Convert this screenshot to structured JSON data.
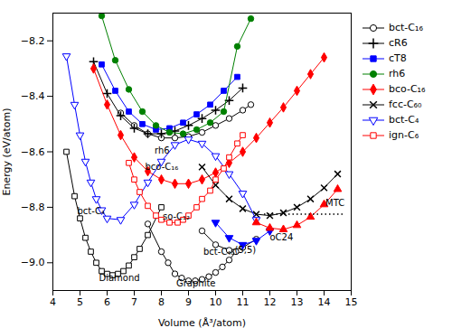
{
  "chart_data": {
    "type": "line",
    "xlabel": "Volume (Å³/atom)",
    "ylabel": "Energy (eV/atom)",
    "xlim": [
      4,
      15
    ],
    "ylim": [
      -9.1,
      -8.1
    ],
    "xticks": [
      4,
      5,
      6,
      7,
      8,
      9,
      10,
      11,
      12,
      13,
      14,
      15
    ],
    "yticks": [
      {
        "value": -9.0,
        "label": "−9.0"
      },
      {
        "value": -8.8,
        "label": "−8.8"
      },
      {
        "value": -8.6,
        "label": "−8.6"
      },
      {
        "value": -8.4,
        "label": "−8.4"
      },
      {
        "value": -8.2,
        "label": "−8.2"
      }
    ],
    "grid": false,
    "legend": "right",
    "series": [
      {
        "color": "black",
        "marker": "open_square",
        "x": [
          4.5,
          4.8,
          5.0,
          5.2,
          5.4,
          5.6,
          5.8,
          6.0,
          6.2,
          6.4,
          6.6,
          6.8,
          7.0,
          7.2,
          7.5,
          8.0
        ],
        "values": [
          -8.6,
          -8.76,
          -8.84,
          -8.91,
          -8.96,
          -9.0,
          -9.03,
          -9.04,
          -9.045,
          -9.04,
          -9.03,
          -9.01,
          -8.98,
          -8.95,
          -8.9,
          -8.8
        ]
      },
      {
        "color": "black",
        "marker": "open_circle",
        "x": [
          7.5,
          8.0,
          8.25,
          8.5,
          8.75,
          9.0,
          9.25,
          9.5,
          9.75,
          10.0,
          10.25,
          10.5,
          10.75
        ],
        "values": [
          -8.86,
          -8.96,
          -9.0,
          -9.04,
          -9.055,
          -9.065,
          -9.065,
          -9.06,
          -9.05,
          -9.035,
          -9.015,
          -8.99,
          -8.96
        ]
      },
      {
        "name": "bct-C₁₆",
        "color": "black",
        "marker": "open_circle",
        "x": [
          6.5,
          7.0,
          7.5,
          8.0,
          8.5,
          9.0,
          9.5,
          10.0,
          10.5,
          11.0,
          11.3
        ],
        "values": [
          -8.46,
          -8.505,
          -8.535,
          -8.55,
          -8.55,
          -8.545,
          -8.53,
          -8.505,
          -8.48,
          -8.45,
          -8.43
        ]
      },
      {
        "name": "cR6",
        "color": "black",
        "marker": "plus",
        "x": [
          5.5,
          6.0,
          6.5,
          7.0,
          7.5,
          8.0,
          8.5,
          9.0,
          9.5,
          10.0,
          10.5,
          11.0
        ],
        "values": [
          -8.275,
          -8.39,
          -8.47,
          -8.515,
          -8.535,
          -8.535,
          -8.525,
          -8.505,
          -8.48,
          -8.45,
          -8.415,
          -8.37
        ]
      },
      {
        "name": "cT8",
        "color": "blue",
        "marker": "square",
        "x": [
          5.8,
          6.3,
          6.8,
          7.3,
          7.8,
          8.3,
          8.8,
          9.3,
          9.8,
          10.3,
          10.8
        ],
        "values": [
          -8.285,
          -8.38,
          -8.455,
          -8.5,
          -8.52,
          -8.515,
          -8.495,
          -8.465,
          -8.43,
          -8.38,
          -8.33
        ]
      },
      {
        "name": "rh6",
        "color": "green",
        "marker": "circle",
        "x": [
          5.8,
          6.3,
          6.8,
          7.3,
          7.8,
          8.3,
          8.8,
          9.3,
          9.8,
          10.3,
          10.8,
          11.3
        ],
        "values": [
          -8.11,
          -8.27,
          -8.375,
          -8.455,
          -8.505,
          -8.53,
          -8.535,
          -8.52,
          -8.495,
          -8.455,
          -8.22,
          -8.12
        ]
      },
      {
        "name": "bco-C₁₆",
        "color": "red",
        "marker": "diamond",
        "x": [
          5.5,
          6.0,
          6.5,
          7.0,
          7.5,
          8.0,
          8.5,
          9.0,
          9.5,
          10.0,
          10.5,
          11.0,
          11.5,
          12.0,
          12.5,
          13.0,
          13.5,
          14.0
        ],
        "values": [
          -8.3,
          -8.43,
          -8.54,
          -8.62,
          -8.67,
          -8.7,
          -8.715,
          -8.715,
          -8.7,
          -8.675,
          -8.64,
          -8.6,
          -8.55,
          -8.495,
          -8.44,
          -8.38,
          -8.32,
          -8.26
        ]
      },
      {
        "name": "fcc-C₆₀",
        "color": "black",
        "marker": "times",
        "x": [
          9.5,
          10.0,
          10.5,
          11.0,
          11.5,
          12.0,
          12.5,
          13.0,
          13.5,
          14.0,
          14.5
        ],
        "values": [
          -8.655,
          -8.72,
          -8.77,
          -8.805,
          -8.825,
          -8.83,
          -8.82,
          -8.8,
          -8.77,
          -8.73,
          -8.68
        ]
      },
      {
        "name": "bct-C₄",
        "color": "blue",
        "marker": "open_triangle_down",
        "x": [
          4.5,
          4.8,
          5.0,
          5.2,
          5.4,
          5.6,
          5.8,
          6.0,
          6.5,
          7.0,
          7.5,
          8.0,
          8.5,
          9.0,
          9.5,
          10.0,
          10.5,
          11.0,
          11.5
        ],
        "values": [
          -8.255,
          -8.43,
          -8.54,
          -8.635,
          -8.71,
          -8.77,
          -8.81,
          -8.84,
          -8.845,
          -8.79,
          -8.71,
          -8.635,
          -8.575,
          -8.555,
          -8.57,
          -8.615,
          -8.68,
          -8.75,
          -8.845
        ]
      },
      {
        "name": "ign-C₆",
        "color": "red",
        "marker": "open_square",
        "x": [
          6.8,
          7.0,
          7.2,
          7.5,
          7.8,
          8.0,
          8.3,
          8.6,
          8.8,
          9.0,
          9.3,
          9.5,
          9.8,
          10.0,
          10.3,
          10.5,
          10.8,
          11.0
        ],
        "values": [
          -8.64,
          -8.7,
          -8.745,
          -8.795,
          -8.83,
          -8.845,
          -8.855,
          -8.855,
          -8.845,
          -8.83,
          -8.8,
          -8.77,
          -8.74,
          -8.7,
          -8.66,
          -8.62,
          -8.57,
          -8.54
        ]
      },
      {
        "color": "black",
        "marker": "open_circle",
        "x": [
          9.5,
          10.0,
          10.5,
          11.0,
          11.5
        ],
        "values": [
          -8.885,
          -8.935,
          -8.955,
          -8.945,
          -8.915
        ]
      },
      {
        "color": "blue",
        "marker": "triangle_down",
        "x": [
          10.0,
          10.5,
          11.0,
          11.5,
          12.0
        ],
        "values": [
          -8.855,
          -8.91,
          -8.935,
          -8.92,
          -8.885
        ]
      },
      {
        "color": "red",
        "marker": "triangle",
        "x": [
          11.5,
          12.0,
          12.5,
          13.0,
          13.5,
          14.0,
          14.5
        ],
        "values": [
          -8.855,
          -8.875,
          -8.88,
          -8.865,
          -8.835,
          -8.79,
          -8.735
        ]
      }
    ],
    "hlines": [
      {
        "y": -8.825,
        "xmin": 11.8,
        "xmax": 14.7,
        "color": "black",
        "line_style": "dotted"
      }
    ],
    "annotations": [
      {
        "x": 8.05,
        "y": -8.845,
        "text": "so-C₁₂"
      },
      {
        "x": 7.4,
        "y": -8.665,
        "text": "bco-C₁₆"
      },
      {
        "x": 7.75,
        "y": -8.605,
        "text": "rh6"
      },
      {
        "x": 4.9,
        "y": -8.825,
        "text": "bct-C₄"
      },
      {
        "x": 5.7,
        "y": -9.065,
        "text": "Diamond"
      },
      {
        "x": 8.55,
        "y": -9.085,
        "text": "Graphite"
      },
      {
        "x": 9.55,
        "y": -8.97,
        "text": "bct-C₄₀"
      },
      {
        "x": 10.7,
        "y": -8.965,
        "text": "(5,5)"
      },
      {
        "x": 12.0,
        "y": -8.92,
        "text": "oC24"
      },
      {
        "x": 14.05,
        "y": -8.795,
        "text": "MTC"
      }
    ]
  }
}
